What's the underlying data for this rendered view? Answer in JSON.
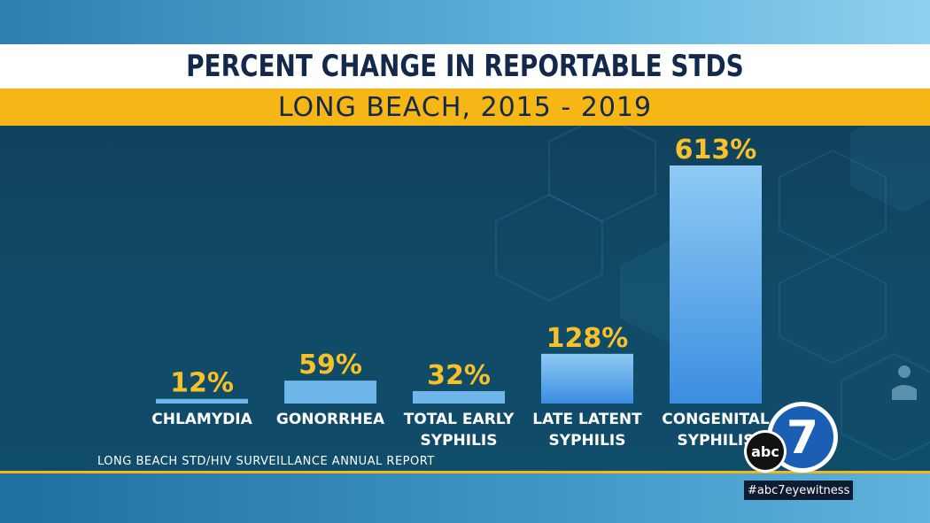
{
  "title": "PERCENT CHANGE IN REPORTABLE STDS",
  "subtitle": "LONG BEACH, 2015 - 2019",
  "source": "LONG BEACH STD/HIV SURVEILLANCE ANNUAL REPORT",
  "hashtag": "#abc7eyewitness",
  "logo": {
    "text_abc": "abc",
    "text_7": "7"
  },
  "colors": {
    "bar": "#6fb6ea",
    "value_label": "#f6c12a",
    "title": "#13294b",
    "accent": "#f6b716"
  },
  "chart_data": {
    "type": "bar",
    "title": "PERCENT CHANGE IN REPORTABLE STDS",
    "subtitle": "LONG BEACH, 2015 - 2019",
    "categories": [
      [
        "CHLAMYDIA"
      ],
      [
        "GONORRHEA"
      ],
      [
        "TOTAL EARLY",
        "SYPHILIS"
      ],
      [
        "LATE LATENT",
        "SYPHILIS"
      ],
      [
        "CONGENITAL",
        "SYPHILIS"
      ]
    ],
    "values": [
      12,
      59,
      32,
      128,
      613
    ],
    "value_labels": [
      "12%",
      "59%",
      "32%",
      "128%",
      "613%"
    ],
    "ylim": [
      0,
      613
    ],
    "xlabel": "",
    "ylabel": "",
    "grid": false
  }
}
